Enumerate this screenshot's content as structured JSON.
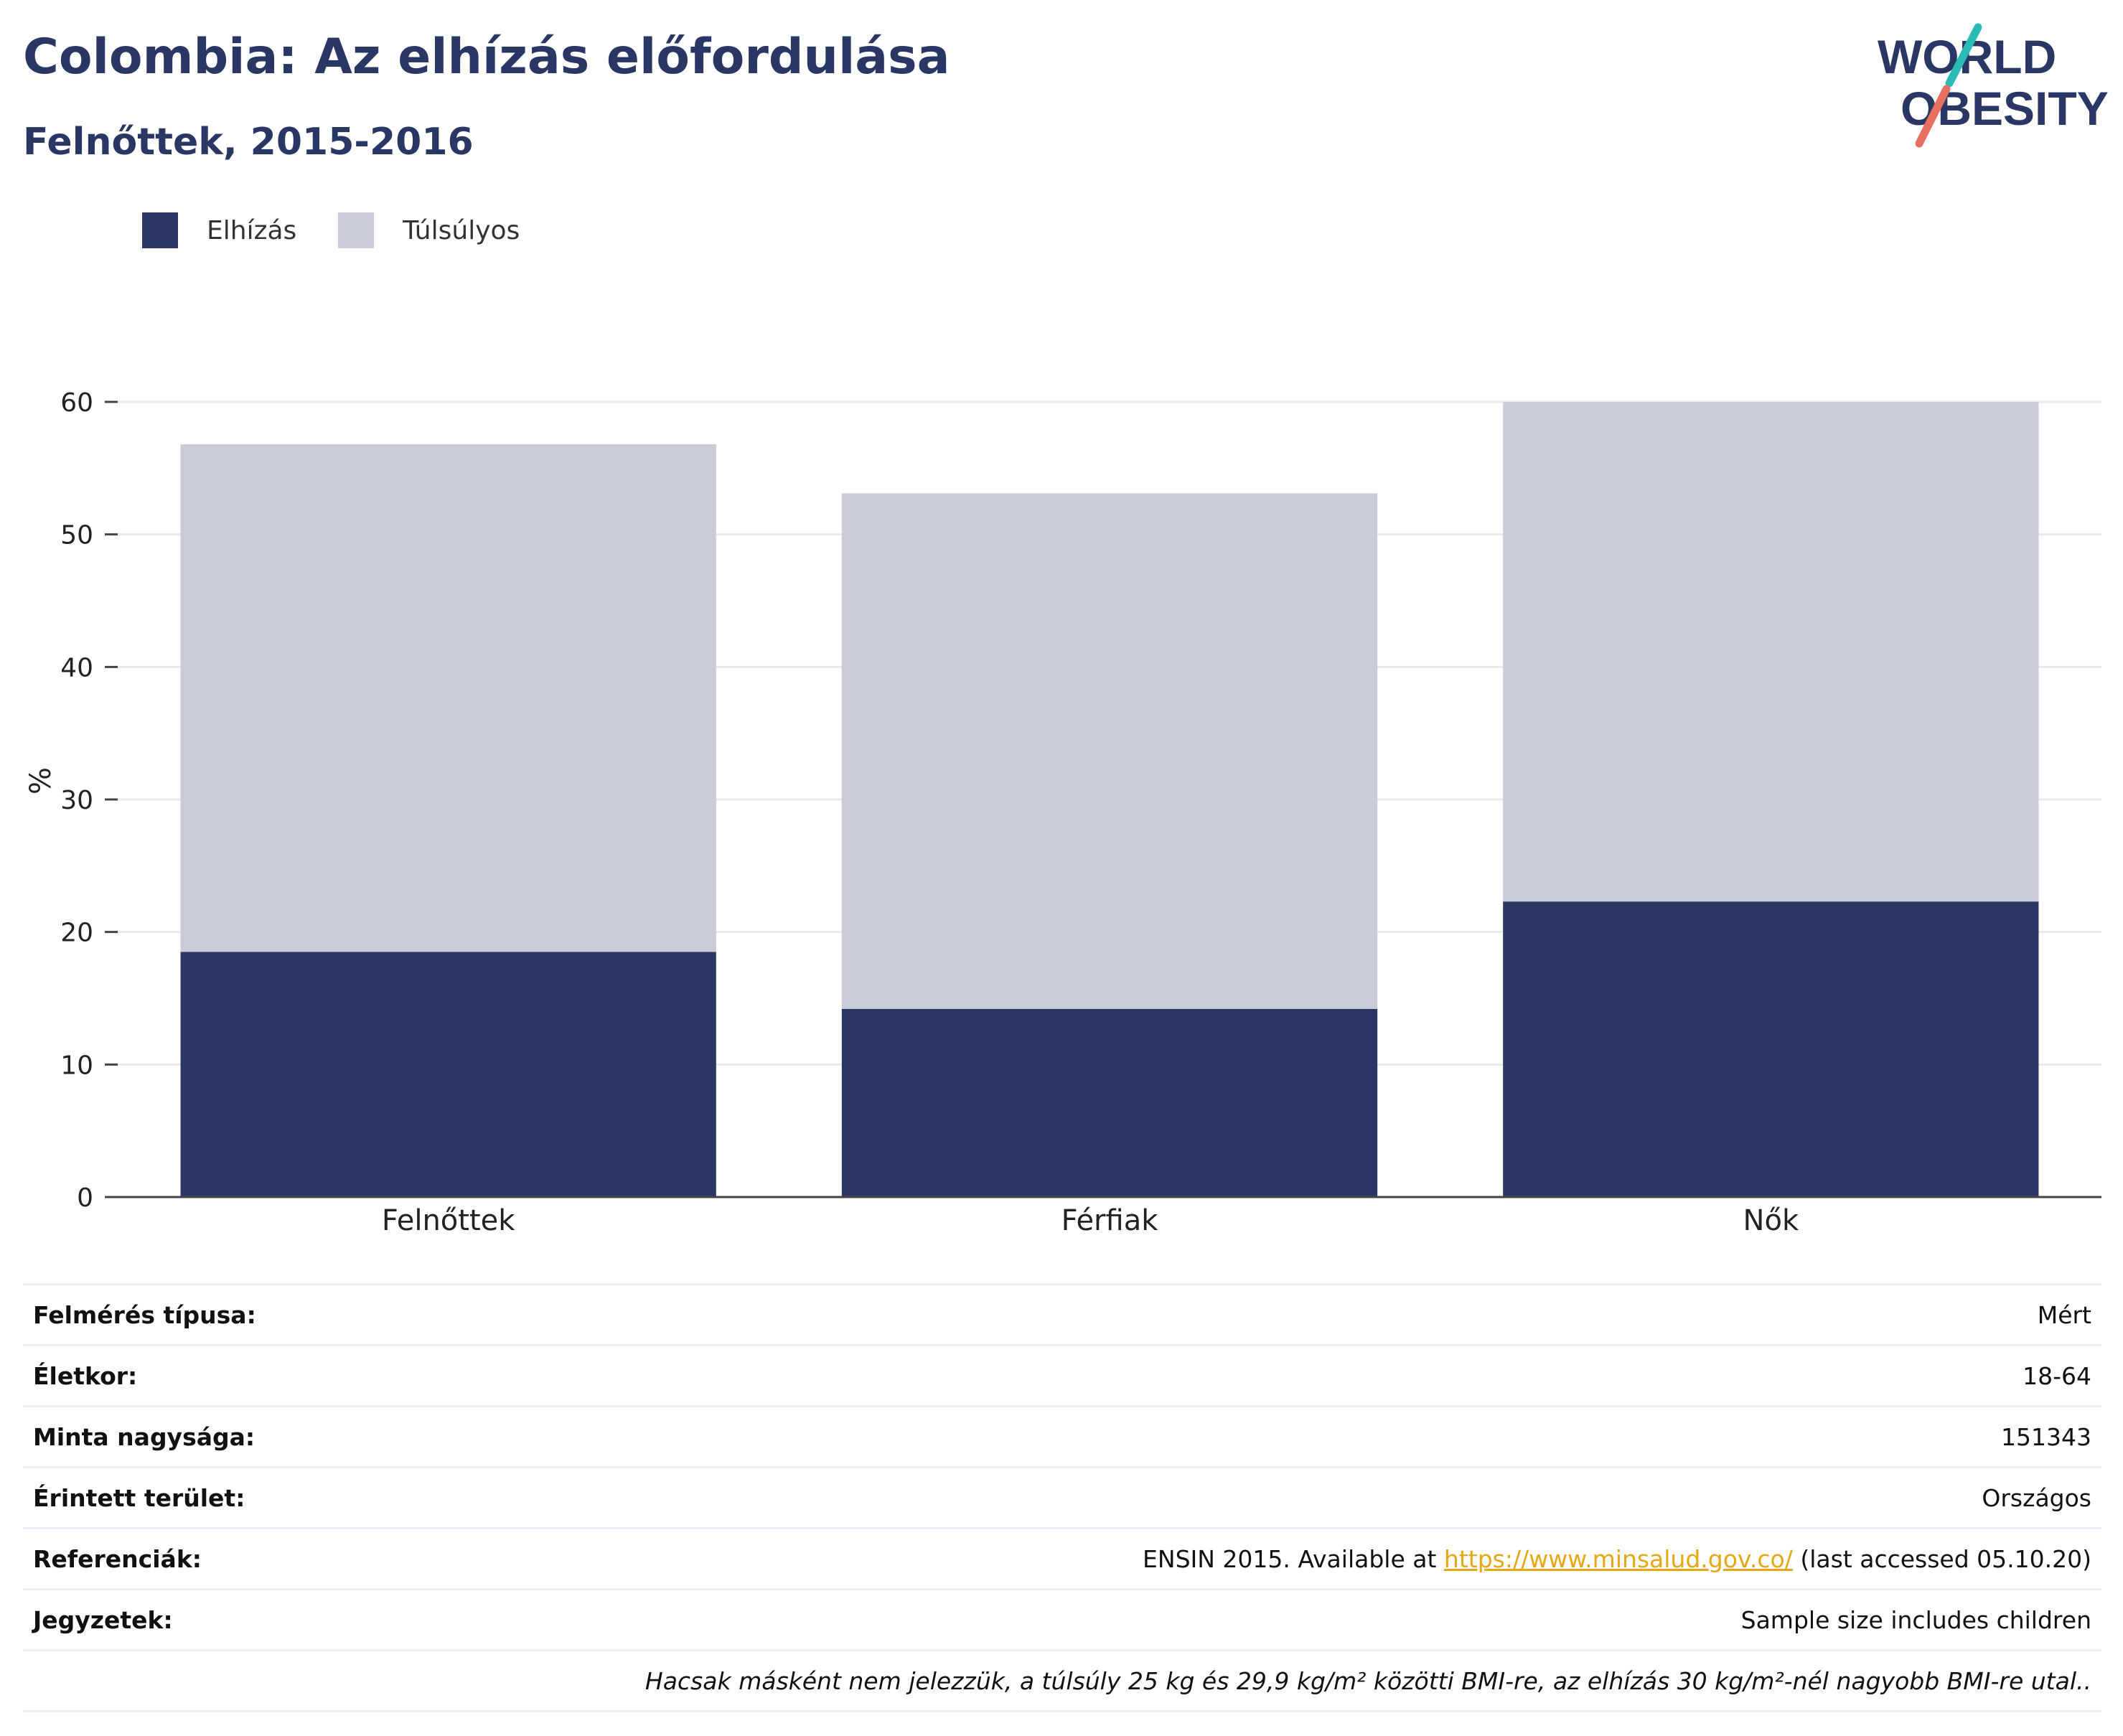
{
  "header": {
    "title": "Colombia: Az elhízás előfordulása",
    "subtitle": "Felnőttek, 2015-2016"
  },
  "logo": {
    "line1": "WORLD",
    "line2": "OBESITY"
  },
  "colors": {
    "obesity": "#2a3764",
    "overweight": "#c9cbd7",
    "accent_link": "#e5a712",
    "logo_teal": "#2bbbb5",
    "logo_coral": "#e8705f"
  },
  "chart_data": {
    "type": "bar",
    "stacked": true,
    "categories": [
      "Felnőttek",
      "Férfiak",
      "Nők"
    ],
    "series": [
      {
        "name": "Elhízás",
        "values": [
          18.5,
          14.2,
          22.3
        ]
      },
      {
        "name": "Túlsúlyos",
        "values": [
          38.3,
          38.9,
          37.7
        ]
      }
    ],
    "ylabel": "%",
    "ylim": [
      0,
      60
    ],
    "yticks": [
      "0",
      "10",
      "20",
      "30",
      "40",
      "50",
      "60"
    ],
    "grid": true,
    "legend_position": "top-left"
  },
  "meta": {
    "rows": [
      {
        "label": "Felmérés típusa:",
        "value": "Mért"
      },
      {
        "label": "Életkor:",
        "value": "18-64"
      },
      {
        "label": "Minta nagysága:",
        "value": "151343"
      },
      {
        "label": "Érintett terület:",
        "value": "Országos"
      }
    ],
    "reference": {
      "label": "Referenciák:",
      "prefix": "ENSIN 2015. Available at ",
      "link": "https://www.minsalud.gov.co/",
      "suffix": " (last accessed 05.10.20)"
    },
    "notes": {
      "label": "Jegyzetek:",
      "value": "Sample size includes children"
    },
    "footnote": "Hacsak másként nem jelezzük, a túlsúly 25 kg és 29,9 kg/m² közötti BMI-re, az elhízás 30 kg/m²-nél nagyobb BMI-re utal.."
  }
}
